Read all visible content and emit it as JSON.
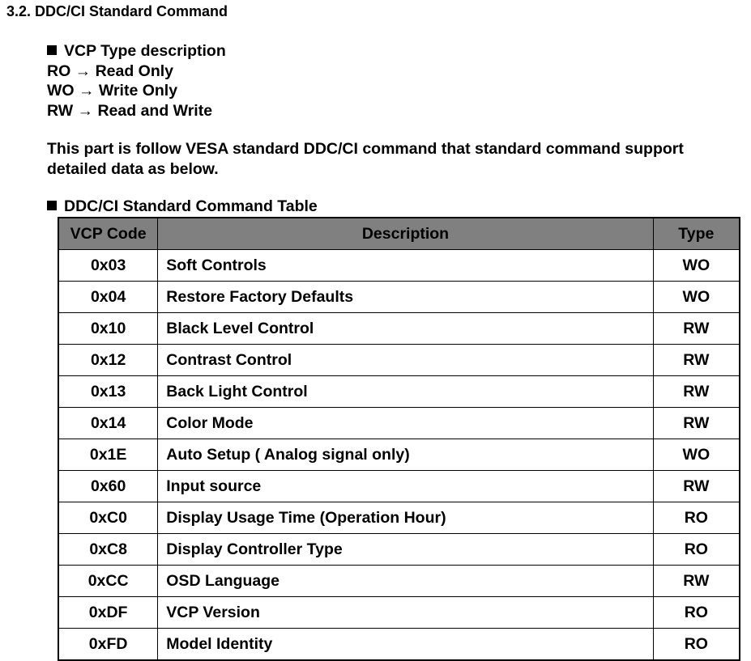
{
  "header": {
    "title": "3.2. DDC/CI Standard Command"
  },
  "vcp_types": {
    "heading": "VCP Type description",
    "items": [
      "RO → Read Only",
      "WO → Write Only",
      "RW → Read and Write"
    ]
  },
  "paragraph": "This part is follow VESA standard DDC/CI command that standard command support detailed data as below.",
  "table": {
    "title": "DDC/CI Standard Command Table",
    "columns": [
      "VCP Code",
      "Description",
      "Type"
    ],
    "rows": [
      [
        "0x03",
        "Soft Controls",
        "WO"
      ],
      [
        "0x04",
        "Restore Factory Defaults",
        "WO"
      ],
      [
        "0x10",
        "Black Level Control",
        "RW"
      ],
      [
        "0x12",
        "Contrast Control",
        "RW"
      ],
      [
        "0x13",
        "Back Light Control",
        "RW"
      ],
      [
        "0x14",
        "Color Mode",
        "RW"
      ],
      [
        "0x1E",
        "Auto Setup ( Analog signal only)",
        "WO"
      ],
      [
        "0x60",
        "Input source",
        "RW"
      ],
      [
        "0xC0",
        "Display Usage Time (Operation Hour)",
        "RO"
      ],
      [
        "0xC8",
        "Display Controller Type",
        "RO"
      ],
      [
        "0xCC",
        "OSD Language",
        "RW"
      ],
      [
        "0xDF",
        "VCP Version",
        "RO"
      ],
      [
        "0xFD",
        "Model Identity",
        "RO"
      ]
    ]
  }
}
